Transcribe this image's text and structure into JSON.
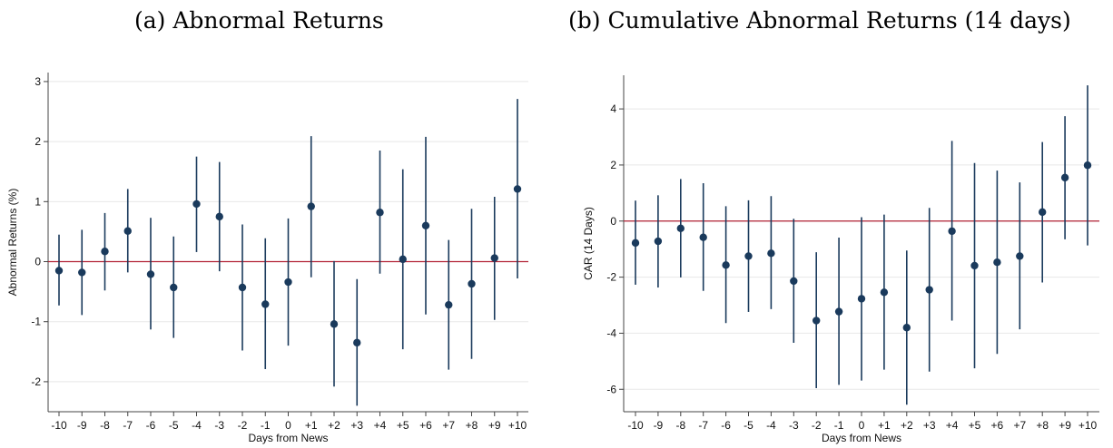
{
  "chart_data": [
    {
      "type": "scatter",
      "title": "(a) Abnormal Returns",
      "xlabel": "Days from News",
      "ylabel": "Abnormal Returns (%)",
      "categories": [
        "-10",
        "-9",
        "-8",
        "-7",
        "-6",
        "-5",
        "-4",
        "-3",
        "-2",
        "-1",
        "0",
        "+1",
        "+2",
        "+3",
        "+4",
        "+5",
        "+6",
        "+7",
        "+8",
        "+9",
        "+10"
      ],
      "series": [
        {
          "values": [
            -0.15,
            -0.18,
            0.17,
            0.51,
            -0.21,
            -0.43,
            0.96,
            0.75,
            -0.43,
            -0.71,
            -0.34,
            0.92,
            -1.04,
            -1.35,
            0.82,
            0.04,
            0.6,
            -0.72,
            -0.37,
            0.06,
            1.21
          ],
          "lower": [
            -0.73,
            -0.89,
            -0.48,
            -0.18,
            -1.13,
            -1.27,
            0.16,
            -0.16,
            -1.48,
            -1.79,
            -1.4,
            -0.26,
            -2.08,
            -2.4,
            -0.2,
            -1.46,
            -0.88,
            -1.8,
            -1.62,
            -0.97,
            -0.28
          ],
          "upper": [
            0.45,
            0.53,
            0.81,
            1.21,
            0.73,
            0.42,
            1.75,
            1.66,
            0.62,
            0.39,
            0.72,
            2.09,
            0.01,
            -0.29,
            1.85,
            1.54,
            2.08,
            0.36,
            0.88,
            1.08,
            2.71
          ]
        }
      ],
      "ylim": [
        -2.5,
        3.15
      ],
      "yticks": [
        -2,
        -1,
        0,
        1,
        2,
        3
      ],
      "reference_line": 0,
      "grid": true,
      "colors": {
        "marker": "#1a3a5c",
        "reference": "#b22234",
        "grid": "#e8e8e8",
        "axis": "#444444"
      }
    },
    {
      "type": "scatter",
      "title": "(b) Cumulative Abnormal Returns (14 days)",
      "xlabel": "Days from News",
      "ylabel": "CAR (14 Days)",
      "categories": [
        "-10",
        "-9",
        "-8",
        "-7",
        "-6",
        "-5",
        "-4",
        "-3",
        "-2",
        "-1",
        "0",
        "+1",
        "+2",
        "+3",
        "+4",
        "+5",
        "+6",
        "+7",
        "+8",
        "+9",
        "+10"
      ],
      "series": [
        {
          "values": [
            -0.78,
            -0.72,
            -0.26,
            -0.58,
            -1.57,
            -1.25,
            -1.15,
            -2.14,
            -3.55,
            -3.23,
            -2.77,
            -2.54,
            -3.8,
            -2.45,
            -0.36,
            -1.59,
            -1.47,
            -1.25,
            0.32,
            1.55,
            1.99
          ],
          "lower": [
            -2.27,
            -2.37,
            -2.01,
            -2.49,
            -3.64,
            -3.24,
            -3.14,
            -4.34,
            -5.96,
            -5.84,
            -5.69,
            -5.3,
            -6.55,
            -5.37,
            -3.55,
            -5.25,
            -4.74,
            -3.86,
            -2.19,
            -0.65,
            -0.87
          ],
          "upper": [
            0.73,
            0.92,
            1.5,
            1.35,
            0.53,
            0.74,
            0.89,
            0.08,
            -1.11,
            -0.59,
            0.14,
            0.23,
            -1.05,
            0.47,
            2.86,
            2.07,
            1.8,
            1.38,
            2.82,
            3.74,
            4.84
          ]
        }
      ],
      "ylim": [
        -6.8,
        5.2
      ],
      "yticks": [
        -6,
        -4,
        -2,
        0,
        2,
        4
      ],
      "reference_line": 0,
      "grid": true,
      "colors": {
        "marker": "#1a3a5c",
        "reference": "#b22234",
        "grid": "#e8e8e8",
        "axis": "#444444"
      }
    }
  ]
}
